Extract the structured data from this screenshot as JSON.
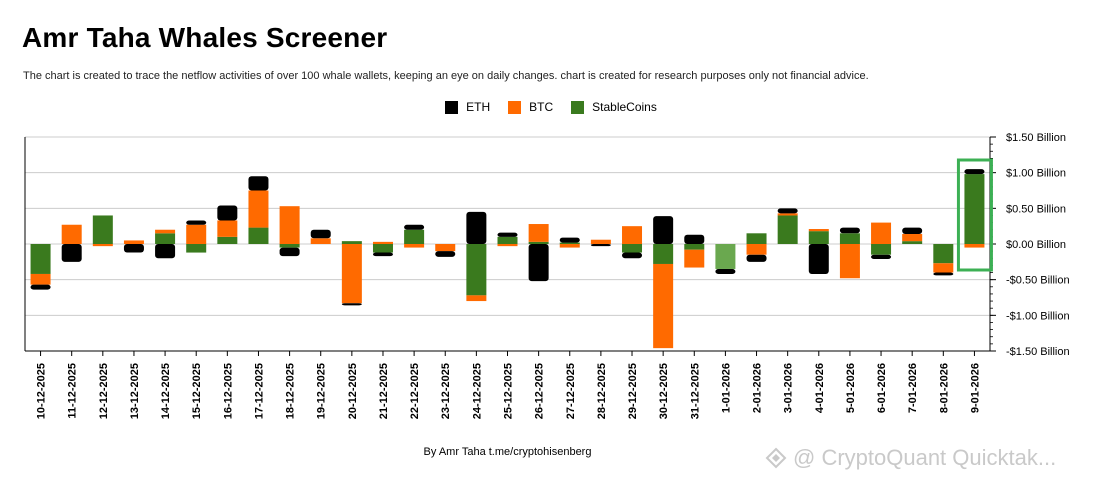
{
  "header": {
    "title": "Amr Taha Whales Screener",
    "subtitle": "The chart is created to trace the netflow activities of over 100 whale wallets, keeping an eye on daily changes.  chart is created for research purposes only not financial advice."
  },
  "footer": {
    "credit": "By Amr Taha  t.me/cryptohisenberg"
  },
  "watermark": {
    "text": "@ CryptoQuant Quicktak..."
  },
  "colors": {
    "eth": "#000000",
    "btc": "#ff6a00",
    "stable": "#3a7a1e",
    "stable_light": "#6aa84f",
    "highlight": "#3cb054",
    "grid": "#cccccc"
  },
  "chart_data": {
    "type": "bar",
    "stacked": true,
    "legend_position": "top-center",
    "grid": true,
    "ylim": [
      -1.5,
      1.5
    ],
    "y_ticks": [
      1.5,
      1.0,
      0.5,
      0.0,
      -0.5,
      -1.0,
      -1.5
    ],
    "y_tick_labels": [
      "$1.50 Billion",
      "$1.00 Billion",
      "$0.50 Billion",
      "$0.00 Billion",
      "-$0.50 Billion",
      "-$1.00 Billion",
      "-$1.50 Billion"
    ],
    "categories": [
      "10-12-2025",
      "11-12-2025",
      "12-12-2025",
      "13-12-2025",
      "14-12-2025",
      "15-12-2025",
      "16-12-2025",
      "17-12-2025",
      "18-12-2025",
      "19-12-2025",
      "20-12-2025",
      "21-12-2025",
      "22-12-2025",
      "23-12-2025",
      "24-12-2025",
      "25-12-2025",
      "26-12-2025",
      "27-12-2025",
      "28-12-2025",
      "29-12-2025",
      "30-12-2025",
      "31-12-2025",
      "1-01-2026",
      "2-01-2026",
      "3-01-2026",
      "4-01-2026",
      "5-01-2026",
      "6-01-2026",
      "7-01-2026",
      "8-01-2026",
      "9-01-2026"
    ],
    "highlight_index": 30,
    "series": [
      {
        "name": "StableCoins",
        "key": "stable",
        "values": [
          -0.42,
          0,
          0.4,
          0,
          0.15,
          -0.12,
          0.1,
          0.23,
          -0.05,
          0,
          0.04,
          -0.12,
          0.2,
          0,
          -0.72,
          0.1,
          0.03,
          0.02,
          0,
          -0.12,
          -0.28,
          -0.08,
          -0.35,
          0.15,
          0.4,
          0.18,
          0.15,
          -0.15,
          0.04,
          -0.27,
          0.98
        ]
      },
      {
        "name": "BTC",
        "key": "btc",
        "values": [
          -0.15,
          0.27,
          -0.03,
          0.05,
          0.05,
          0.27,
          0.23,
          0.52,
          0.53,
          0.08,
          -0.83,
          0.03,
          -0.05,
          -0.1,
          -0.08,
          -0.03,
          0.25,
          -0.05,
          0.06,
          0.25,
          -1.18,
          -0.25,
          0,
          -0.15,
          0.03,
          0.03,
          -0.48,
          0.3,
          0.1,
          -0.13,
          -0.05
        ]
      },
      {
        "name": "ETH",
        "key": "eth",
        "values": [
          -0.07,
          -0.25,
          0,
          -0.12,
          -0.2,
          0.06,
          0.21,
          0.2,
          -0.12,
          0.12,
          -0.03,
          -0.05,
          0.07,
          -0.08,
          0.45,
          0.06,
          -0.52,
          0.07,
          -0.03,
          -0.08,
          0.39,
          0.13,
          -0.07,
          -0.1,
          0.07,
          -0.42,
          0.08,
          -0.06,
          0.09,
          -0.04,
          0.07
        ]
      }
    ]
  }
}
